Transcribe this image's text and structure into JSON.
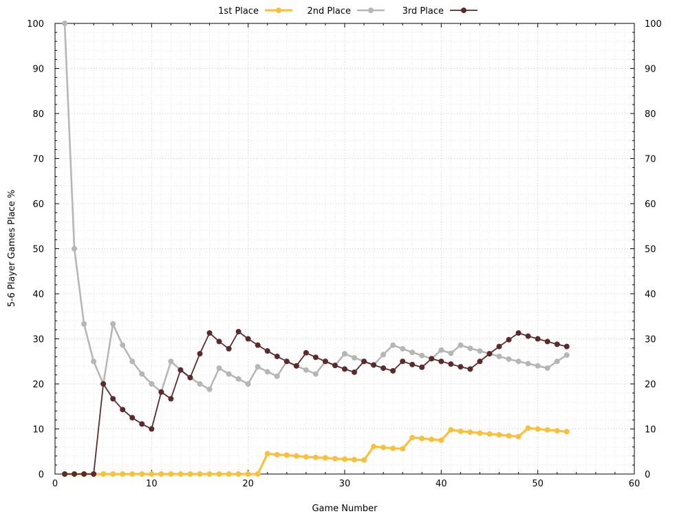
{
  "chart_data": {
    "type": "line",
    "title": "",
    "xlabel": "Game Number",
    "ylabel": "5-6 Player Games Place %",
    "xlim": [
      0,
      60
    ],
    "ylim": [
      0,
      100
    ],
    "x_ticks": [
      0,
      10,
      20,
      30,
      40,
      50,
      60
    ],
    "y_ticks": [
      0,
      10,
      20,
      30,
      40,
      50,
      60,
      70,
      80,
      90,
      100
    ],
    "grid": true,
    "legend_position": "top-center",
    "x": [
      1,
      2,
      3,
      4,
      5,
      6,
      7,
      8,
      9,
      10,
      11,
      12,
      13,
      14,
      15,
      16,
      17,
      18,
      19,
      20,
      21,
      22,
      23,
      24,
      25,
      26,
      27,
      28,
      29,
      30,
      31,
      32,
      33,
      34,
      35,
      36,
      37,
      38,
      39,
      40,
      41,
      42,
      43,
      44,
      45,
      46,
      47,
      48,
      49,
      50,
      51,
      52,
      53
    ],
    "series": [
      {
        "name": "1st Place",
        "color": "#f8c03d",
        "values": [
          0,
          0,
          0,
          0,
          0,
          0,
          0,
          0,
          0,
          0,
          0,
          0,
          0,
          0,
          0,
          0,
          0,
          0,
          0,
          0,
          0,
          4.5,
          4.3,
          4.2,
          4.0,
          3.8,
          3.7,
          3.6,
          3.4,
          3.3,
          3.2,
          3.1,
          6.1,
          5.9,
          5.7,
          5.6,
          8.1,
          7.9,
          7.7,
          7.5,
          9.8,
          9.5,
          9.3,
          9.1,
          8.9,
          8.7,
          8.5,
          8.3,
          10.2,
          10.0,
          9.8,
          9.6,
          9.4
        ]
      },
      {
        "name": "2nd Place",
        "color": "#b4b7b4",
        "values": [
          100,
          50,
          33.3,
          25,
          20,
          33.3,
          28.6,
          25,
          22.2,
          20,
          18.2,
          25,
          23.1,
          21.4,
          20,
          18.8,
          23.5,
          22.2,
          21.1,
          20,
          23.8,
          22.7,
          21.7,
          25,
          24,
          23.1,
          22.2,
          25,
          24.1,
          26.7,
          25.8,
          25,
          24.2,
          26.5,
          28.6,
          27.8,
          27.0,
          26.3,
          25.6,
          27.5,
          26.8,
          28.6,
          27.9,
          27.3,
          26.7,
          26.1,
          25.5,
          25.0,
          24.5,
          24.0,
          23.5,
          25.0,
          26.4
        ]
      },
      {
        "name": "3rd Place",
        "color": "#5c2a2a",
        "values": [
          0,
          0,
          0,
          0,
          20,
          16.7,
          14.3,
          12.5,
          11.1,
          10,
          18.2,
          16.7,
          23.1,
          21.4,
          26.7,
          31.3,
          29.4,
          27.8,
          31.6,
          30,
          28.6,
          27.3,
          26.1,
          25,
          24,
          26.9,
          25.9,
          25,
          24.1,
          23.3,
          22.6,
          25,
          24.2,
          23.5,
          22.9,
          25,
          24.3,
          23.7,
          25.6,
          25,
          24.4,
          23.8,
          23.3,
          25,
          26.7,
          28.3,
          29.8,
          31.3,
          30.6,
          30.0,
          29.4,
          28.8,
          28.3
        ]
      }
    ]
  }
}
